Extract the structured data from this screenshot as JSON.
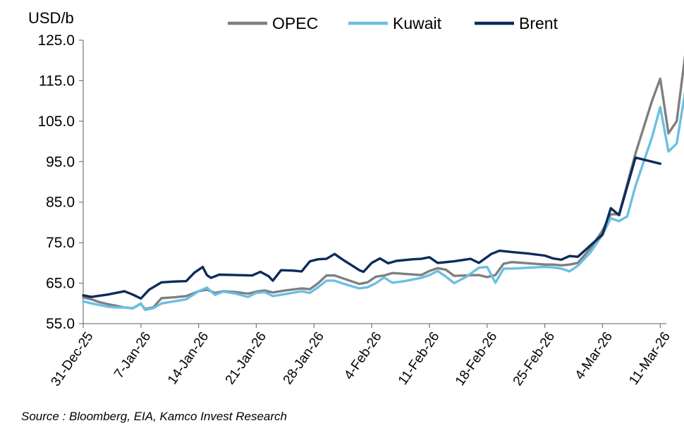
{
  "chart_data": {
    "type": "line",
    "ylabel": "USD/b",
    "ylim": [
      55,
      125
    ],
    "yticks": [
      "125.0",
      "115.0",
      "105.0",
      "95.0",
      "85.0",
      "75.0",
      "65.0",
      "55.0"
    ],
    "ytick_values": [
      125,
      115,
      105,
      95,
      85,
      75,
      65,
      55
    ],
    "x_range_days": [
      0,
      73
    ],
    "xticks": [
      {
        "label": "31-Dec-25",
        "day": 0
      },
      {
        "label": "7-Jan-26",
        "day": 7
      },
      {
        "label": "14-Jan-26",
        "day": 14
      },
      {
        "label": "21-Jan-26",
        "day": 21
      },
      {
        "label": "28-Jan-26",
        "day": 28
      },
      {
        "label": "4-Feb-26",
        "day": 35
      },
      {
        "label": "11-Feb-26",
        "day": 42
      },
      {
        "label": "18-Feb-26",
        "day": 49
      },
      {
        "label": "25-Feb-26",
        "day": 56
      },
      {
        "label": "4-Mar-26",
        "day": 63
      },
      {
        "label": "11-Mar-26",
        "day": 70
      }
    ],
    "legend_position": "top",
    "series": [
      {
        "name": "OPEC",
        "color": "#7f7f7f",
        "points": [
          [
            0,
            61.5
          ],
          [
            1,
            61
          ],
          [
            2,
            60.3
          ],
          [
            3,
            59.8
          ],
          [
            4,
            59.4
          ],
          [
            5,
            59
          ],
          [
            6,
            58.8
          ],
          [
            7,
            59.9
          ],
          [
            7.5,
            58.6
          ],
          [
            8.5,
            59
          ],
          [
            9.5,
            61.3
          ],
          [
            11,
            61.5
          ],
          [
            12.5,
            61.8
          ],
          [
            14,
            63
          ],
          [
            15,
            63.4
          ],
          [
            16,
            62.6
          ],
          [
            17,
            63
          ],
          [
            18.5,
            62.8
          ],
          [
            20,
            62.4
          ],
          [
            21,
            62.9
          ],
          [
            22,
            63.2
          ],
          [
            23,
            62.7
          ],
          [
            24.5,
            63.2
          ],
          [
            26.5,
            63.7
          ],
          [
            27.5,
            63.5
          ],
          [
            28.5,
            65
          ],
          [
            29.5,
            66.9
          ],
          [
            30.5,
            66.9
          ],
          [
            31.5,
            66.2
          ],
          [
            32.5,
            65.5
          ],
          [
            33.5,
            64.8
          ],
          [
            34.5,
            65.2
          ],
          [
            35.5,
            66.6
          ],
          [
            36.5,
            66.9
          ],
          [
            37.5,
            67.5
          ],
          [
            39,
            67.3
          ],
          [
            41,
            67
          ],
          [
            42,
            68
          ],
          [
            43,
            68.7
          ],
          [
            44,
            68.3
          ],
          [
            45,
            66.8
          ],
          [
            46.5,
            66.9
          ],
          [
            48,
            67
          ],
          [
            49,
            66.5
          ],
          [
            50,
            67
          ],
          [
            51,
            69.8
          ],
          [
            52,
            70.2
          ],
          [
            54,
            69.9
          ],
          [
            56,
            69.6
          ],
          [
            57,
            69.6
          ],
          [
            58,
            69.4
          ],
          [
            59,
            69.6
          ],
          [
            60,
            70
          ],
          [
            61.5,
            73.5
          ],
          [
            63,
            78
          ],
          [
            64,
            82
          ],
          [
            65,
            82
          ],
          [
            67,
            97
          ],
          [
            69,
            110
          ],
          [
            70,
            115.5
          ],
          [
            71,
            102
          ],
          [
            72,
            105
          ],
          [
            73,
            121
          ]
        ]
      },
      {
        "name": "Kuwait",
        "color": "#6bbfe3",
        "points": [
          [
            0,
            60.5
          ],
          [
            1,
            60
          ],
          [
            2,
            59.6
          ],
          [
            3,
            59.2
          ],
          [
            4,
            59
          ],
          [
            5,
            59
          ],
          [
            6,
            58.8
          ],
          [
            7,
            60
          ],
          [
            7.5,
            58.4
          ],
          [
            8.5,
            58.8
          ],
          [
            9.5,
            60
          ],
          [
            11,
            60.5
          ],
          [
            12.5,
            61
          ],
          [
            14,
            63
          ],
          [
            15,
            63.9
          ],
          [
            16,
            62.1
          ],
          [
            17,
            62.9
          ],
          [
            18.5,
            62.4
          ],
          [
            20,
            61.6
          ],
          [
            21,
            62.6
          ],
          [
            22,
            62.8
          ],
          [
            23,
            61.8
          ],
          [
            24.5,
            62.3
          ],
          [
            26.5,
            63
          ],
          [
            27.5,
            62.6
          ],
          [
            28.5,
            64
          ],
          [
            29.5,
            65.6
          ],
          [
            30.5,
            65.6
          ],
          [
            31.5,
            64.9
          ],
          [
            32.5,
            64.3
          ],
          [
            33.5,
            63.7
          ],
          [
            34.5,
            64
          ],
          [
            35.5,
            65
          ],
          [
            36.5,
            66.4
          ],
          [
            37.5,
            65.1
          ],
          [
            39,
            65.5
          ],
          [
            41,
            66.3
          ],
          [
            42,
            67
          ],
          [
            43,
            68
          ],
          [
            44,
            66.6
          ],
          [
            45,
            65
          ],
          [
            46.5,
            66.6
          ],
          [
            48,
            68.8
          ],
          [
            49,
            69
          ],
          [
            50,
            65.1
          ],
          [
            51,
            68.6
          ],
          [
            52,
            68.6
          ],
          [
            54,
            68.8
          ],
          [
            56,
            69
          ],
          [
            57,
            68.9
          ],
          [
            58,
            68.6
          ],
          [
            59,
            67.9
          ],
          [
            60,
            69.3
          ],
          [
            61.5,
            72.5
          ],
          [
            63,
            77
          ],
          [
            64,
            81
          ],
          [
            65,
            80.3
          ],
          [
            66,
            81.5
          ],
          [
            67,
            89
          ],
          [
            69,
            101
          ],
          [
            70,
            108.5
          ],
          [
            71,
            97.5
          ],
          [
            72,
            99.5
          ],
          [
            73,
            112
          ]
        ]
      },
      {
        "name": "Brent",
        "color": "#0d2b5b",
        "points": [
          [
            0,
            62
          ],
          [
            1,
            61.6
          ],
          [
            3,
            62.2
          ],
          [
            5,
            63
          ],
          [
            6,
            62.2
          ],
          [
            7,
            61.2
          ],
          [
            8,
            63.4
          ],
          [
            9.5,
            65.2
          ],
          [
            11,
            65.4
          ],
          [
            12.5,
            65.5
          ],
          [
            13.5,
            67.6
          ],
          [
            14.5,
            69
          ],
          [
            15,
            67
          ],
          [
            15.5,
            66.3
          ],
          [
            16.5,
            67.1
          ],
          [
            18.5,
            67
          ],
          [
            20.5,
            66.9
          ],
          [
            21.5,
            67.8
          ],
          [
            22.5,
            66.7
          ],
          [
            23,
            65.6
          ],
          [
            24,
            68.2
          ],
          [
            25.5,
            68.1
          ],
          [
            26.5,
            67.9
          ],
          [
            27.5,
            70.4
          ],
          [
            28.5,
            70.9
          ],
          [
            29.5,
            71
          ],
          [
            30.5,
            72.2
          ],
          [
            31.5,
            70.8
          ],
          [
            32.5,
            69.5
          ],
          [
            33.5,
            68.2
          ],
          [
            34,
            67.8
          ],
          [
            35,
            70
          ],
          [
            36,
            71.1
          ],
          [
            37,
            69.9
          ],
          [
            38,
            70.5
          ],
          [
            40,
            70.9
          ],
          [
            41,
            71
          ],
          [
            42,
            71.4
          ],
          [
            43,
            70
          ],
          [
            45,
            70.4
          ],
          [
            47,
            71
          ],
          [
            48,
            70
          ],
          [
            49.5,
            72.2
          ],
          [
            50.5,
            73
          ],
          [
            52,
            72.7
          ],
          [
            54,
            72.3
          ],
          [
            56,
            71.8
          ],
          [
            57,
            71.1
          ],
          [
            58,
            70.8
          ],
          [
            59,
            71.7
          ],
          [
            60,
            71.5
          ],
          [
            63,
            77
          ],
          [
            64,
            83.5
          ],
          [
            65,
            81.8
          ],
          [
            67,
            96
          ],
          [
            70,
            94.5
          ]
        ]
      }
    ]
  },
  "source": "Source : Bloomberg, EIA, Kamco Invest Research"
}
